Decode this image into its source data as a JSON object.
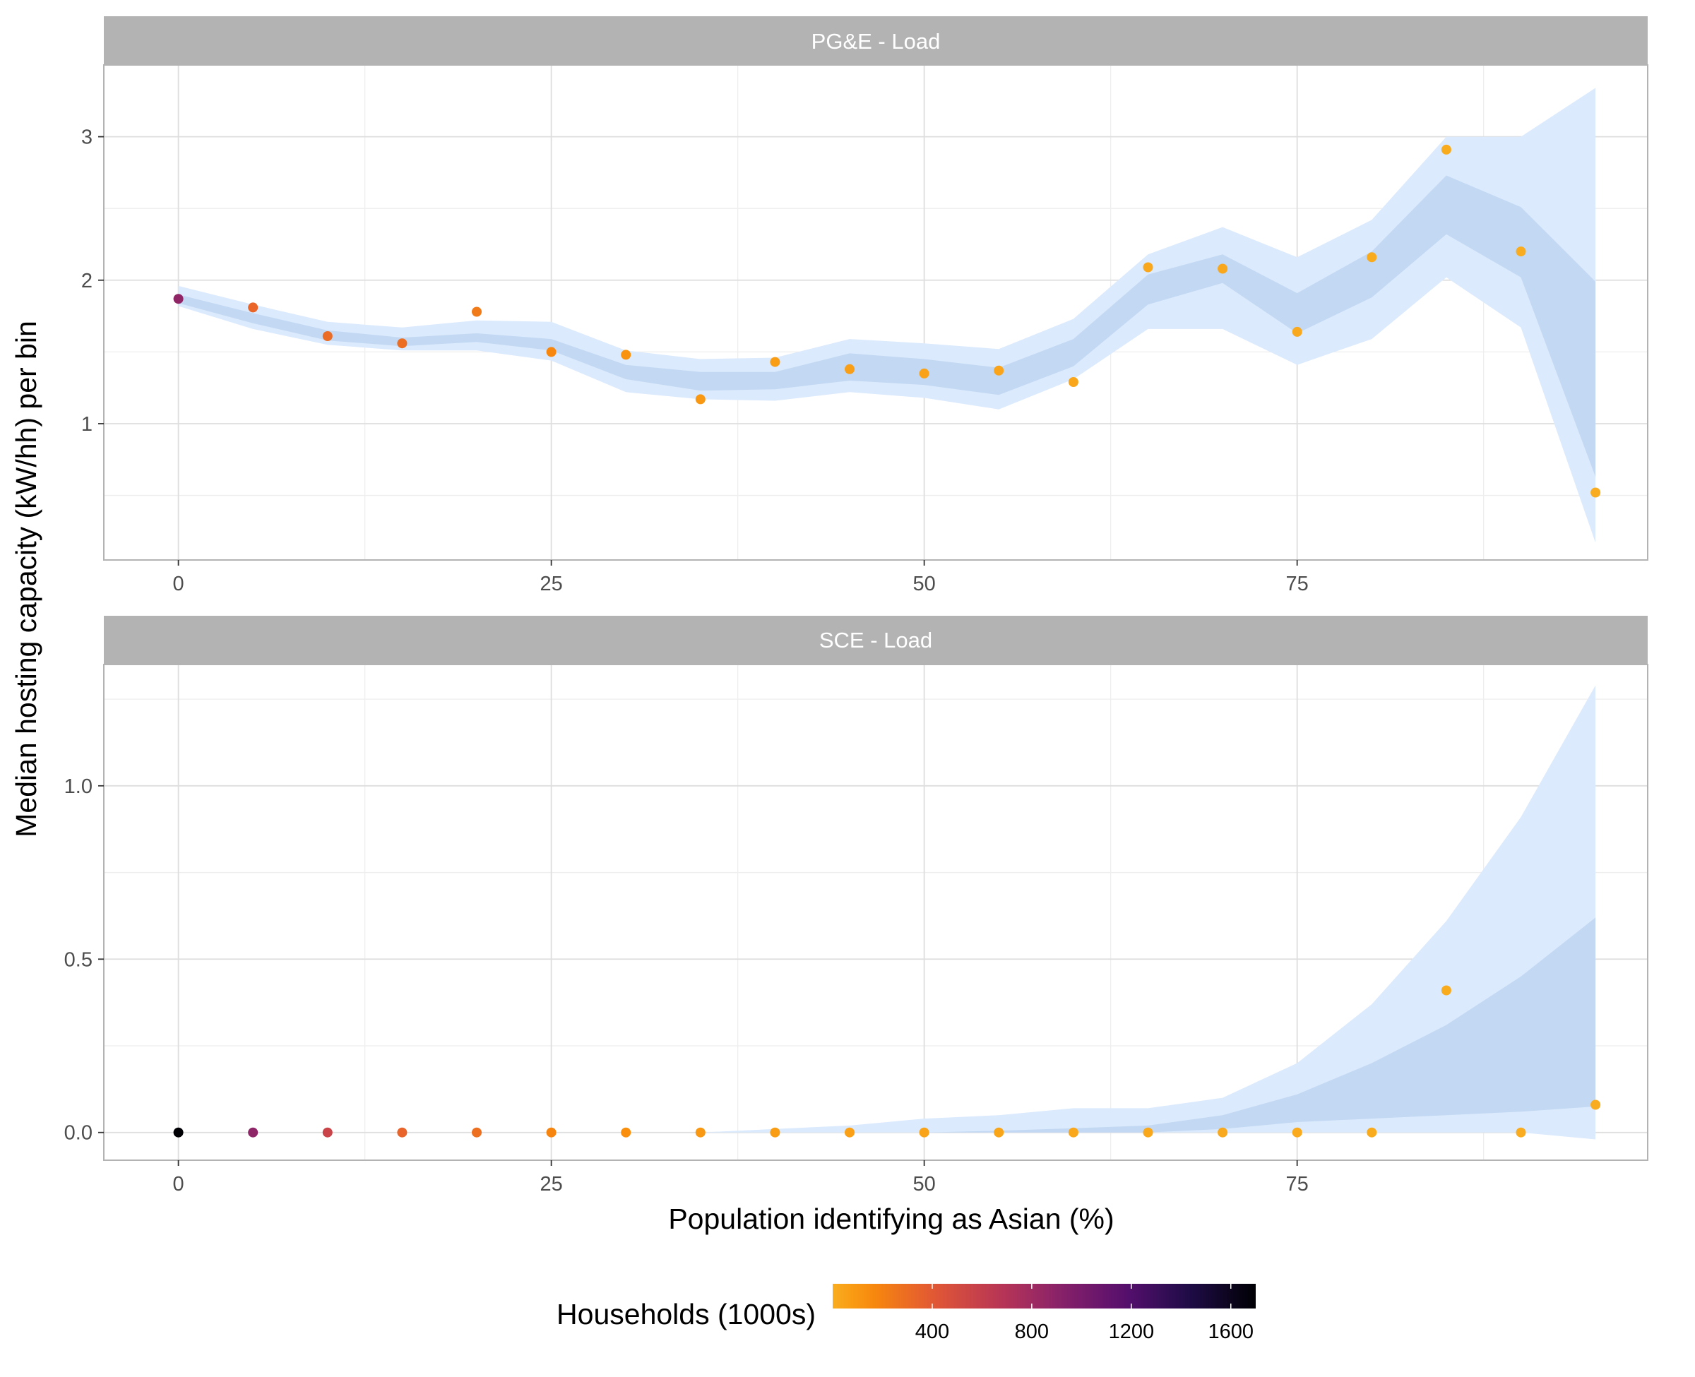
{
  "chart_data": {
    "type": "scatter",
    "x_label": "Population identifying as Asian (%)",
    "y_label": "Median hosting capacity (kW/hh) per bin",
    "x_ticks": [
      0,
      25,
      50,
      75
    ],
    "x_range": [
      -5,
      98.5
    ],
    "grid": "on",
    "colors": {
      "outer_band": "#dbeafd",
      "inner_band": "#c3d8f2",
      "strip_fill": "#b3b3b3",
      "grid_major": "#dedede",
      "grid_minor": "#eeeeee",
      "panel_border": "#b3b3b3"
    },
    "legend": {
      "title": "Households (1000s)",
      "position": "bottom",
      "colormap": "inferno-reversed",
      "range": [
        0,
        1700
      ],
      "ticks": [
        400,
        800,
        1200,
        1600
      ],
      "tick_labels": [
        "400",
        "800",
        "1200",
        "1600"
      ]
    },
    "panels": [
      {
        "title": "PG&E - Load",
        "y_range": [
          0.05,
          3.5
        ],
        "y_ticks": [
          1,
          2,
          3
        ],
        "y_tick_labels": [
          "1",
          "2",
          "3"
        ],
        "points": [
          {
            "x": 0,
            "y": 1.87,
            "households": 870
          },
          {
            "x": 5,
            "y": 1.81,
            "households": 330
          },
          {
            "x": 10,
            "y": 1.61,
            "households": 300
          },
          {
            "x": 15,
            "y": 1.56,
            "households": 290
          },
          {
            "x": 20,
            "y": 1.78,
            "households": 230
          },
          {
            "x": 25,
            "y": 1.5,
            "households": 170
          },
          {
            "x": 30,
            "y": 1.48,
            "households": 120
          },
          {
            "x": 35,
            "y": 1.17,
            "households": 90
          },
          {
            "x": 40,
            "y": 1.43,
            "households": 70
          },
          {
            "x": 45,
            "y": 1.38,
            "households": 60
          },
          {
            "x": 50,
            "y": 1.35,
            "households": 50
          },
          {
            "x": 55,
            "y": 1.37,
            "households": 40
          },
          {
            "x": 60,
            "y": 1.29,
            "households": 30
          },
          {
            "x": 65,
            "y": 2.09,
            "households": 25
          },
          {
            "x": 70,
            "y": 2.08,
            "households": 20
          },
          {
            "x": 75,
            "y": 1.64,
            "households": 15
          },
          {
            "x": 80,
            "y": 2.16,
            "households": 10
          },
          {
            "x": 85,
            "y": 2.91,
            "households": 8
          },
          {
            "x": 90,
            "y": 2.2,
            "households": 5
          },
          {
            "x": 95,
            "y": 0.52,
            "households": 3
          }
        ],
        "band_x": [
          0,
          5,
          10,
          15,
          20,
          25,
          30,
          35,
          40,
          45,
          50,
          55,
          60,
          65,
          70,
          75,
          80,
          85,
          90,
          95
        ],
        "inner_low": [
          1.84,
          1.7,
          1.58,
          1.54,
          1.57,
          1.51,
          1.31,
          1.23,
          1.24,
          1.3,
          1.27,
          1.2,
          1.4,
          1.83,
          1.98,
          1.63,
          1.88,
          2.32,
          2.02,
          0.63
        ],
        "inner_high": [
          1.9,
          1.77,
          1.65,
          1.6,
          1.63,
          1.59,
          1.41,
          1.36,
          1.36,
          1.49,
          1.45,
          1.39,
          1.59,
          2.04,
          2.18,
          1.91,
          2.2,
          2.73,
          2.51,
          1.99
        ],
        "outer_low": [
          1.82,
          1.66,
          1.55,
          1.51,
          1.51,
          1.44,
          1.22,
          1.17,
          1.16,
          1.22,
          1.18,
          1.1,
          1.31,
          1.66,
          1.66,
          1.41,
          1.59,
          2.02,
          1.67,
          0.17
        ],
        "outer_high": [
          1.96,
          1.83,
          1.71,
          1.67,
          1.72,
          1.71,
          1.51,
          1.45,
          1.46,
          1.59,
          1.56,
          1.52,
          1.73,
          2.18,
          2.37,
          2.16,
          2.42,
          3.0,
          3.0,
          3.34
        ]
      },
      {
        "title": "SCE - Load",
        "y_range": [
          -0.08,
          1.35
        ],
        "y_ticks": [
          0.0,
          0.5,
          1.0
        ],
        "y_tick_labels": [
          "0.0",
          "0.5",
          "1.0"
        ],
        "points": [
          {
            "x": 0,
            "y": 0.0,
            "households": 1700
          },
          {
            "x": 5,
            "y": 0.0,
            "households": 880
          },
          {
            "x": 10,
            "y": 0.0,
            "households": 560
          },
          {
            "x": 15,
            "y": 0.0,
            "households": 340
          },
          {
            "x": 20,
            "y": 0.0,
            "households": 280
          },
          {
            "x": 25,
            "y": 0.0,
            "households": 180
          },
          {
            "x": 30,
            "y": 0.0,
            "households": 130
          },
          {
            "x": 35,
            "y": 0.0,
            "households": 90
          },
          {
            "x": 40,
            "y": 0.0,
            "households": 70
          },
          {
            "x": 45,
            "y": 0.0,
            "households": 55
          },
          {
            "x": 50,
            "y": 0.0,
            "households": 45
          },
          {
            "x": 55,
            "y": 0.0,
            "households": 35
          },
          {
            "x": 60,
            "y": 0.0,
            "households": 28
          },
          {
            "x": 65,
            "y": 0.0,
            "households": 22
          },
          {
            "x": 70,
            "y": 0.0,
            "households": 18
          },
          {
            "x": 75,
            "y": 0.0,
            "households": 14
          },
          {
            "x": 80,
            "y": 0.0,
            "households": 10
          },
          {
            "x": 85,
            "y": 0.41,
            "households": 8
          },
          {
            "x": 90,
            "y": 0.0,
            "households": 5
          },
          {
            "x": 95,
            "y": 0.08,
            "households": 3
          }
        ],
        "band_x": [
          0,
          5,
          10,
          15,
          20,
          25,
          30,
          35,
          40,
          45,
          50,
          55,
          60,
          65,
          70,
          75,
          80,
          85,
          90,
          95
        ],
        "inner_low": [
          0,
          0,
          0,
          0,
          0,
          0,
          0,
          0,
          0,
          0,
          0,
          0,
          0,
          0,
          0.01,
          0.03,
          0.04,
          0.05,
          0.06,
          0.075
        ],
        "inner_high": [
          0,
          0,
          0,
          0,
          0,
          0,
          0,
          0,
          0,
          0,
          0,
          0.005,
          0.012,
          0.02,
          0.05,
          0.11,
          0.2,
          0.31,
          0.45,
          0.62
        ],
        "outer_low": [
          0,
          0,
          0,
          0,
          0,
          0,
          0,
          0,
          0,
          0,
          0,
          0,
          0,
          0,
          0,
          0,
          0,
          0,
          0,
          -0.02
        ],
        "outer_high": [
          0,
          0,
          0,
          0,
          0,
          0,
          0,
          0,
          0.01,
          0.02,
          0.04,
          0.05,
          0.07,
          0.07,
          0.1,
          0.2,
          0.37,
          0.61,
          0.91,
          1.29
        ]
      }
    ]
  }
}
